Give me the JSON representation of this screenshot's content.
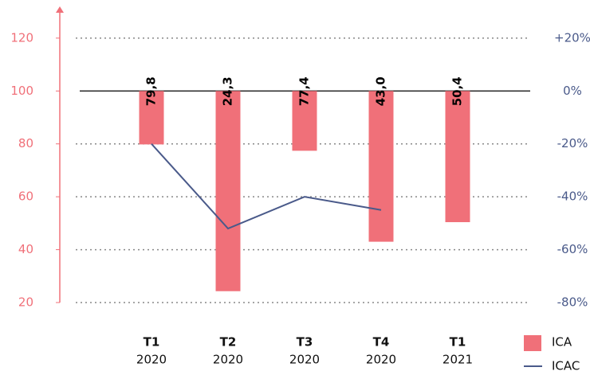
{
  "chart_data": {
    "type": "bar",
    "categories": [
      {
        "quarter": "T1",
        "year": "2020"
      },
      {
        "quarter": "T2",
        "year": "2020"
      },
      {
        "quarter": "T3",
        "year": "2020"
      },
      {
        "quarter": "T4",
        "year": "2020"
      },
      {
        "quarter": "T1",
        "year": "2021"
      }
    ],
    "baseline": 100,
    "series": [
      {
        "name": "ICA",
        "color": "#f07079",
        "values": [
          79.8,
          24.3,
          77.4,
          43.0,
          50.4
        ],
        "value_labels": [
          "79,8",
          "24,3",
          "77,4",
          "43,0",
          "50,4"
        ]
      },
      {
        "name": "ICAC",
        "color": "#4a5a8a",
        "type": "line",
        "axis": "y2",
        "values": [
          -20,
          -52,
          -40,
          -45,
          null
        ]
      }
    ],
    "ylim": [
      20,
      132
    ],
    "yticks": [
      20,
      40,
      60,
      80,
      100,
      120
    ],
    "y2lim": [
      -80,
      32
    ],
    "y2ticks": [
      {
        "value": -80,
        "label": "-80%"
      },
      {
        "value": -60,
        "label": "-60%"
      },
      {
        "value": -40,
        "label": "-40%"
      },
      {
        "value": -20,
        "label": "-20%"
      },
      {
        "value": 0,
        "label": "0%"
      },
      {
        "value": 20,
        "label": "+20%"
      }
    ],
    "grid": true
  }
}
